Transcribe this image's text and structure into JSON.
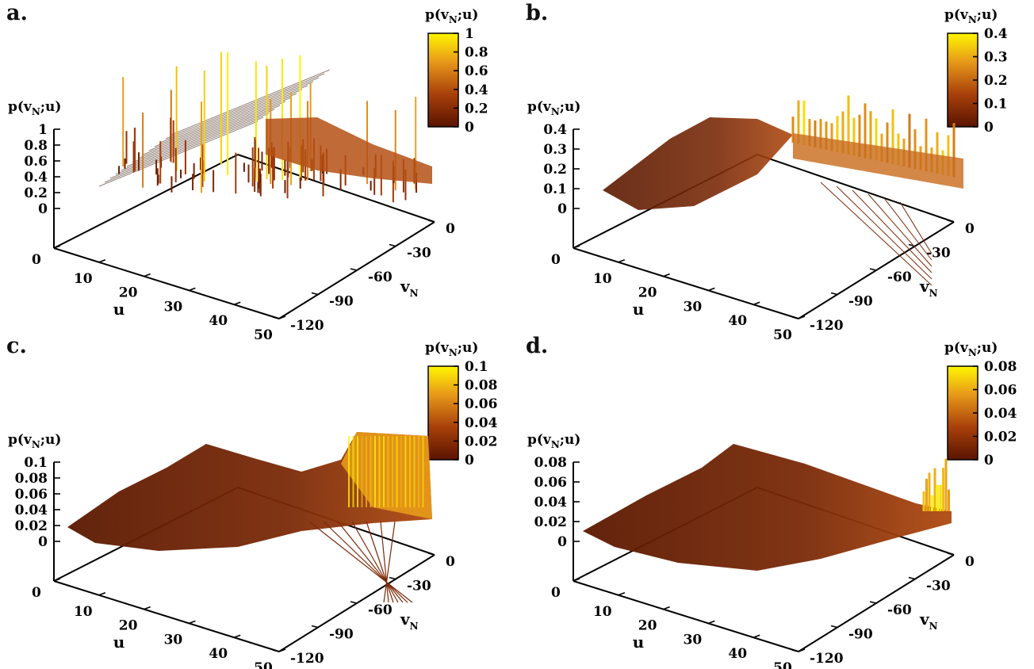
{
  "figure": {
    "panels": [
      {
        "letter": "a.",
        "z_ticks": [
          "0",
          "0.2",
          "0.4",
          "0.6",
          "0.8",
          "1"
        ],
        "cb_ticks": [
          "0",
          "0.2",
          "0.4",
          "0.6",
          "0.8",
          "1"
        ],
        "shape": "spiky"
      },
      {
        "letter": "b.",
        "z_ticks": [
          "0",
          "0.1",
          "0.2",
          "0.3",
          "0.4"
        ],
        "cb_ticks": [
          "0",
          "0.1",
          "0.2",
          "0.3",
          "0.4"
        ],
        "shape": "ridge"
      },
      {
        "letter": "c.",
        "z_ticks": [
          "0",
          "0.02",
          "0.04",
          "0.06",
          "0.08",
          "0.1"
        ],
        "cb_ticks": [
          "0",
          "0.02",
          "0.04",
          "0.06",
          "0.08",
          "0.1"
        ],
        "shape": "smooth"
      },
      {
        "letter": "d.",
        "z_ticks": [
          "0",
          "0.02",
          "0.04",
          "0.06",
          "0.08"
        ],
        "cb_ticks": [
          "0",
          "0.02",
          "0.04",
          "0.06",
          "0.08"
        ],
        "shape": "flat"
      }
    ],
    "z_label_main": "p(v",
    "z_label_sub": "N",
    "z_label_tail": ";u)",
    "u_label": "u",
    "vn_label_main": "v",
    "vn_label_sub": "N",
    "u_ticks": [
      "0",
      "10",
      "20",
      "30",
      "40",
      "50"
    ],
    "vn_ticks": [
      "-120",
      "-90",
      "-60",
      "-30",
      "0"
    ]
  },
  "chart_data": [
    {
      "type": "surface",
      "panel": "a",
      "xlabel": "u",
      "ylabel": "vN",
      "zlabel": "p(vN;u)",
      "x_ticks": [
        0,
        10,
        20,
        30,
        40,
        50
      ],
      "y_ticks": [
        -120,
        -90,
        -60,
        -30,
        0
      ],
      "zlim": [
        0,
        1
      ],
      "colorbar_range": [
        0,
        1
      ]
    },
    {
      "type": "surface",
      "panel": "b",
      "xlabel": "u",
      "ylabel": "vN",
      "zlabel": "p(vN;u)",
      "x_ticks": [
        0,
        10,
        20,
        30,
        40,
        50
      ],
      "y_ticks": [
        -120,
        -90,
        -60,
        -30,
        0
      ],
      "zlim": [
        0,
        0.4
      ],
      "colorbar_range": [
        0,
        0.4
      ]
    },
    {
      "type": "surface",
      "panel": "c",
      "xlabel": "u",
      "ylabel": "vN",
      "zlabel": "p(vN;u)",
      "x_ticks": [
        0,
        10,
        20,
        30,
        40,
        50
      ],
      "y_ticks": [
        -120,
        -90,
        -60,
        -30,
        0
      ],
      "zlim": [
        0,
        0.1
      ],
      "colorbar_range": [
        0,
        0.1
      ]
    },
    {
      "type": "surface",
      "panel": "d",
      "xlabel": "u",
      "ylabel": "vN",
      "zlabel": "p(vN;u)",
      "x_ticks": [
        0,
        10,
        20,
        30,
        40,
        50
      ],
      "y_ticks": [
        -120,
        -90,
        -60,
        -30,
        0
      ],
      "zlim": [
        0,
        0.08
      ],
      "colorbar_range": [
        0,
        0.08
      ]
    }
  ],
  "colors": {
    "low": "#6b1a00",
    "mid": "#c8621a",
    "high": "#fff200"
  }
}
